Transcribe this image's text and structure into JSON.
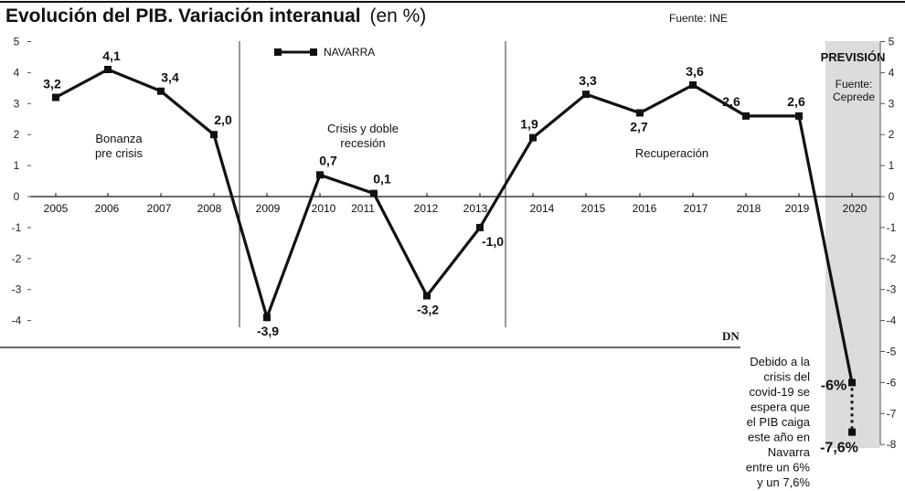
{
  "header": {
    "title": "Evolución del PIB. Variación interanual",
    "title_unit": "(en %)",
    "source": "Fuente: INE"
  },
  "forecast": {
    "label": "PREVISIÓN",
    "source_line1": "Fuente:",
    "source_line2": "Ceprede",
    "band_color": "#dcdcdc"
  },
  "logo": "DN",
  "periods": [
    {
      "line1": "Bonanza",
      "line2": "pre crisis"
    },
    {
      "line1": "Crisis y doble",
      "line2": "recesión"
    },
    {
      "line1": "Recuperación",
      "line2": ""
    }
  ],
  "note": [
    "Debido a la",
    "crisis del",
    "covid-19 se",
    "espera que",
    "el PIB caiga",
    "este año en",
    "Navarra",
    "entre un 6%",
    "y un 7,6%"
  ],
  "chart_data": {
    "type": "line",
    "title": "Evolución del PIB. Variación interanual (en %)",
    "ylim": [
      -8,
      5
    ],
    "left_axis_ticks": [
      5,
      4,
      3,
      2,
      1,
      0,
      -1,
      -2,
      -3,
      -4
    ],
    "right_axis_ticks": [
      5,
      4,
      3,
      2,
      1,
      0,
      -1,
      -2,
      -3,
      -4,
      -5,
      -6,
      -7,
      -8
    ],
    "categories": [
      "2005",
      "2006",
      "2007",
      "2008",
      "2009",
      "2010",
      "2011",
      "2012",
      "2013",
      "2014",
      "2015",
      "2016",
      "2017",
      "2018",
      "2019",
      "2020"
    ],
    "series": [
      {
        "name": "NAVARRA",
        "color": "#111111",
        "values": [
          3.2,
          4.1,
          3.4,
          2.0,
          -3.9,
          0.7,
          0.1,
          -3.2,
          -1.0,
          1.9,
          3.3,
          2.7,
          3.6,
          2.6,
          2.6,
          -6.0
        ],
        "labels": [
          "3,2",
          "4,1",
          "3,4",
          "2,0",
          "-3,9",
          "0,7",
          "0,1",
          "-3,2",
          "-1,0",
          "1,9",
          "3,3",
          "2,7",
          "3,6",
          "2,6",
          "2,6",
          "-6%"
        ]
      }
    ],
    "forecast_range": {
      "category": "2020",
      "values": [
        -6.0,
        -7.6
      ],
      "labels": [
        "-6%",
        "-7,6%"
      ]
    },
    "legend": "top-center",
    "grid": false
  }
}
